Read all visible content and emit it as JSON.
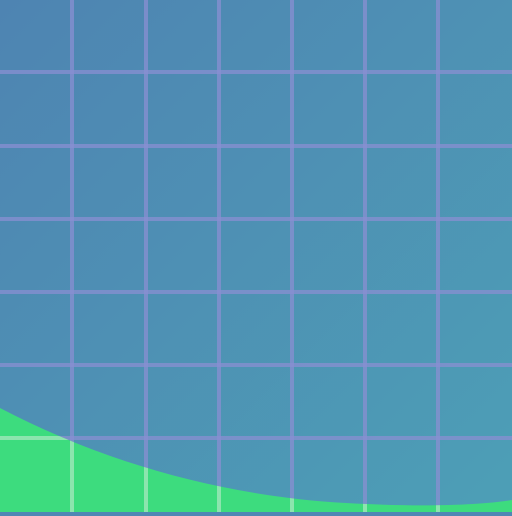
{
  "colors": {
    "background_top_left": "#4e84b2",
    "background_bottom_right": "#4d9fb6",
    "grid_line": "#8a8fd2",
    "grid_line_over_fill": "#9ae6b6",
    "fill": "#3ddc7e"
  },
  "grid": {
    "visible": true
  }
}
